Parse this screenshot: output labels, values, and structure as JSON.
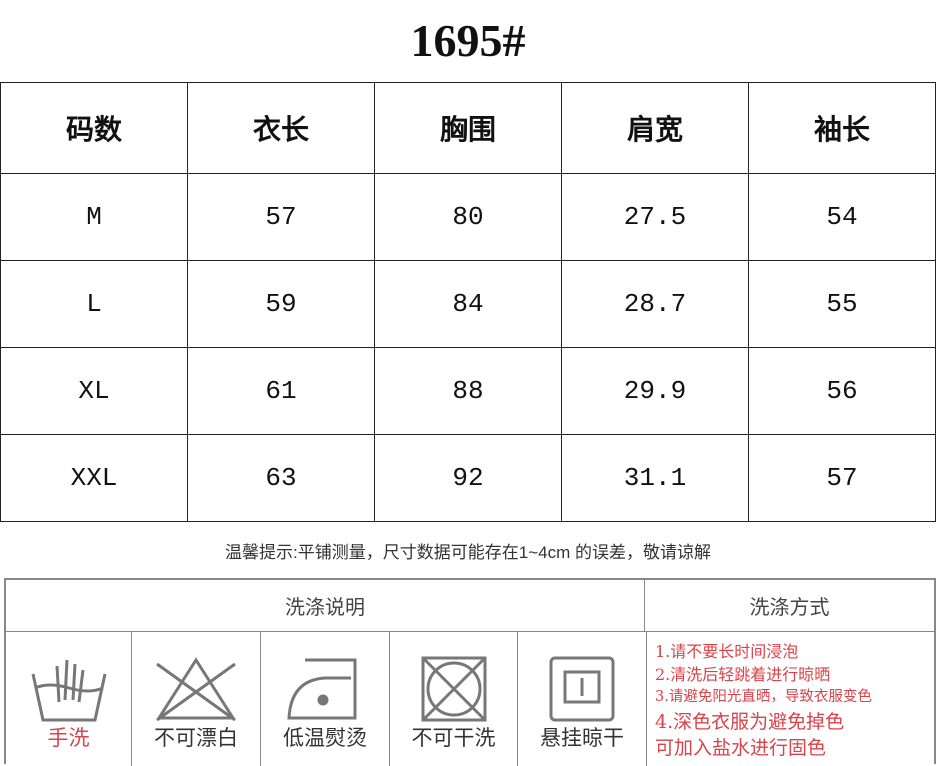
{
  "title": "1695#",
  "size_table": {
    "headers": [
      "码数",
      "衣长",
      "胸围",
      "肩宽",
      "袖长"
    ],
    "rows": [
      [
        "M",
        "57",
        "80",
        "27.5",
        "54"
      ],
      [
        "L",
        "59",
        "84",
        "28.7",
        "55"
      ],
      [
        "XL",
        "61",
        "88",
        "29.9",
        "56"
      ],
      [
        "XXL",
        "63",
        "92",
        "31.1",
        "57"
      ]
    ]
  },
  "note": "温馨提示:平铺测量，尺寸数据可能存在1~4cm 的误差，敬请谅解",
  "wash": {
    "left_header": "洗涤说明",
    "right_header": "洗涤方式",
    "icons": [
      {
        "icon": "hand-wash-icon",
        "label": "手洗",
        "color": "#d9434a"
      },
      {
        "icon": "no-bleach-icon",
        "label": "不可漂白"
      },
      {
        "icon": "low-iron-icon",
        "label": "低温熨烫"
      },
      {
        "icon": "no-dry-clean-icon",
        "label": "不可干洗"
      },
      {
        "icon": "hang-dry-icon",
        "label": "悬挂晾干"
      }
    ],
    "methods": [
      "1.请不要长时间浸泡",
      "2.清洗后轻跳着进行晾晒",
      "3.请避免阳光直晒，导致衣服变色",
      "4.深色衣服为避免掉色",
      "可加入盐水进行固色"
    ],
    "method_color": "#d9434a"
  }
}
